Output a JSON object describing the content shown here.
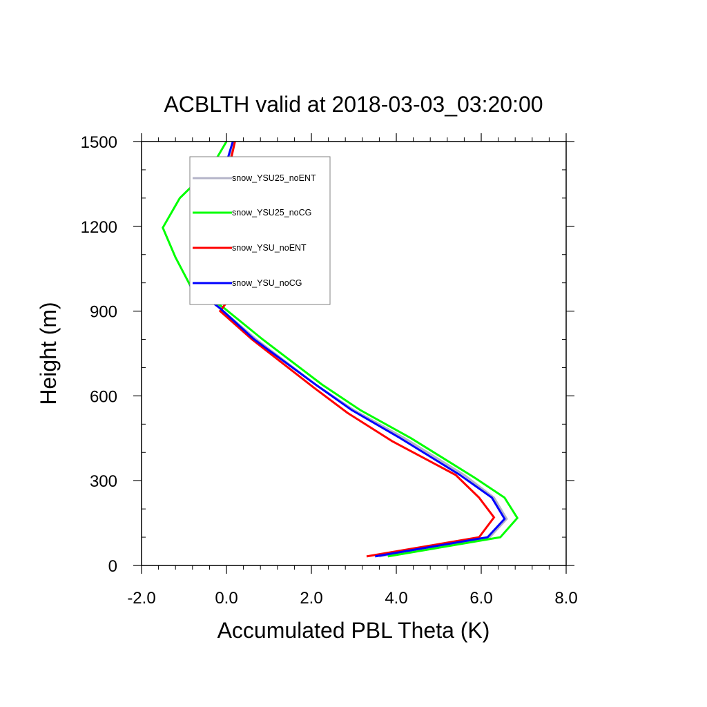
{
  "chart_data": {
    "type": "line",
    "title": "ACBLTH valid at 2018-03-03_03:20:00",
    "xlabel": "Accumulated PBL Theta (K)",
    "ylabel": "Height (m)",
    "xlim": [
      -2.0,
      8.0
    ],
    "ylim": [
      0,
      1500
    ],
    "xticks": [
      -2.0,
      0.0,
      2.0,
      4.0,
      6.0,
      8.0
    ],
    "xtick_labels": [
      "-2.0",
      "0.0",
      "2.0",
      "4.0",
      "6.0",
      "8.0"
    ],
    "yticks": [
      0,
      300,
      600,
      900,
      1200,
      1500
    ],
    "ytick_labels": [
      "0",
      "300",
      "600",
      "900",
      "1200",
      "1500"
    ],
    "x_minor_step": 0.4,
    "y_minor_step": 100,
    "grid": false,
    "legend_position": "top-left",
    "series": [
      {
        "name": "snow_YSU25_noENT",
        "color": "#b4b4c8",
        "x": [
          3.6,
          6.2,
          6.6,
          6.3,
          5.6,
          4.2,
          3.0,
          2.1,
          0.7,
          -0.15,
          -0.85,
          -0.55,
          -0.35,
          -0.15,
          0.0,
          0.2
        ],
        "y": [
          32,
          100,
          165,
          240,
          320,
          450,
          550,
          640,
          800,
          910,
          990,
          1100,
          1200,
          1300,
          1400,
          1500
        ]
      },
      {
        "name": "snow_YSU25_noCG",
        "color": "#00ff00",
        "x": [
          3.8,
          6.45,
          6.85,
          6.55,
          5.85,
          4.35,
          3.15,
          2.25,
          0.85,
          -0.05,
          -0.85,
          -1.2,
          -1.5,
          -1.1,
          -0.35,
          0.0
        ],
        "y": [
          32,
          100,
          168,
          240,
          310,
          450,
          550,
          640,
          800,
          910,
          990,
          1090,
          1195,
          1300,
          1410,
          1500
        ]
      },
      {
        "name": "snow_YSU_noENT",
        "color": "#ff0000",
        "x": [
          3.3,
          5.95,
          6.3,
          5.95,
          5.4,
          3.9,
          2.85,
          2.05,
          0.6,
          -0.15,
          0.05,
          -0.1,
          -0.05,
          0.0,
          0.05,
          0.2
        ],
        "y": [
          32,
          100,
          170,
          240,
          320,
          440,
          540,
          630,
          800,
          900,
          940,
          1000,
          1090,
          1200,
          1400,
          1500
        ]
      },
      {
        "name": "snow_YSU_noCG",
        "color": "#0000ff",
        "x": [
          3.5,
          6.15,
          6.55,
          6.25,
          5.5,
          4.1,
          2.95,
          2.1,
          0.65,
          -0.15,
          -0.85,
          -0.7,
          -0.55,
          -0.25,
          -0.05,
          0.15
        ],
        "y": [
          32,
          100,
          165,
          240,
          320,
          450,
          550,
          640,
          800,
          910,
          990,
          1100,
          1200,
          1300,
          1400,
          1500
        ]
      }
    ]
  }
}
